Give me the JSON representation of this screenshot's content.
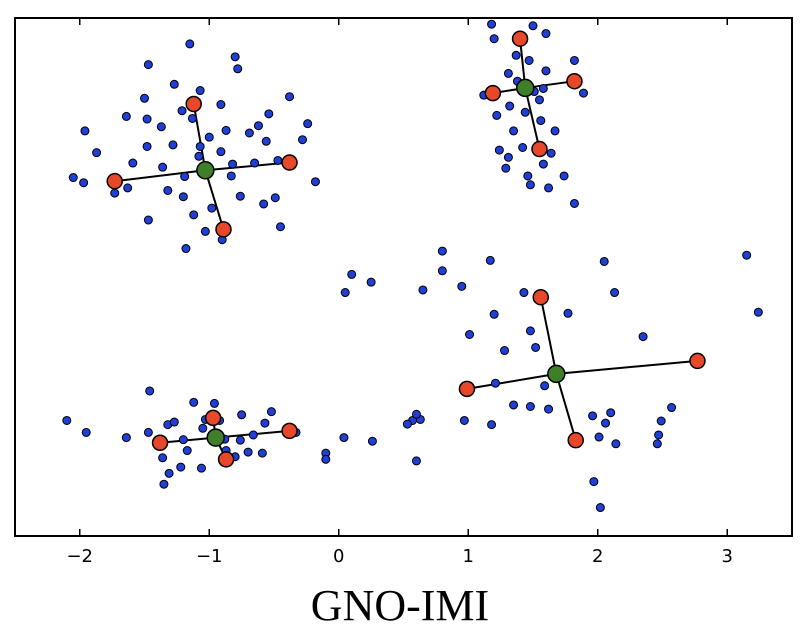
{
  "chart_data": {
    "type": "scatter",
    "title": "GNO-IMI",
    "xlabel": "",
    "ylabel": "",
    "xlim": [
      -2.5,
      3.5
    ],
    "ylim": [
      0,
      10
    ],
    "x_ticks": [
      -2,
      -1,
      0,
      1,
      2,
      3
    ],
    "x_tick_labels": [
      "−2",
      "−1",
      "0",
      "1",
      "2",
      "3"
    ],
    "y_ticks_shown": false,
    "grid": false,
    "legend": "none",
    "colors": {
      "points": "#1f3fd6",
      "centroids": "#3f7f2a",
      "subcentroids": "#e8482a"
    },
    "series": [
      {
        "role": "points",
        "points": [
          [
            -1.15,
            9.5
          ],
          [
            -0.8,
            9.25
          ],
          [
            -0.78,
            9.02
          ],
          [
            -1.47,
            9.1
          ],
          [
            -1.27,
            8.72
          ],
          [
            -1.5,
            8.45
          ],
          [
            -1.07,
            8.6
          ],
          [
            -0.38,
            8.48
          ],
          [
            -0.91,
            8.33
          ],
          [
            -1.64,
            8.1
          ],
          [
            -1.48,
            8.05
          ],
          [
            -1.21,
            8.21
          ],
          [
            -1.13,
            8.06
          ],
          [
            -1.37,
            7.9
          ],
          [
            -0.54,
            8.15
          ],
          [
            -0.24,
            7.96
          ],
          [
            -1.96,
            7.82
          ],
          [
            -1.0,
            7.7
          ],
          [
            -0.87,
            7.83
          ],
          [
            -0.56,
            7.62
          ],
          [
            -0.69,
            7.78
          ],
          [
            -1.28,
            7.55
          ],
          [
            -1.48,
            7.52
          ],
          [
            -0.91,
            7.42
          ],
          [
            -1.08,
            7.33
          ],
          [
            -0.28,
            7.65
          ],
          [
            -1.59,
            7.2
          ],
          [
            -1.36,
            7.12
          ],
          [
            -0.65,
            7.2
          ],
          [
            -0.82,
            7.18
          ],
          [
            -0.47,
            7.25
          ],
          [
            -1.97,
            6.82
          ],
          [
            -1.19,
            6.94
          ],
          [
            -1.32,
            6.67
          ],
          [
            -0.49,
            6.53
          ],
          [
            -0.76,
            6.56
          ],
          [
            -0.58,
            6.41
          ],
          [
            -1.63,
            6.72
          ],
          [
            -1.73,
            6.62
          ],
          [
            -1.2,
            6.55
          ],
          [
            -0.98,
            6.33
          ],
          [
            -1.47,
            6.1
          ],
          [
            -1.12,
            6.2
          ],
          [
            -1.03,
            5.88
          ],
          [
            -1.18,
            5.55
          ],
          [
            -0.9,
            5.72
          ],
          [
            -0.45,
            5.97
          ],
          [
            -2.05,
            6.92
          ],
          [
            -1.87,
            7.4
          ],
          [
            -0.18,
            6.84
          ],
          [
            -0.83,
            6.95
          ],
          [
            -1.07,
            7.52
          ],
          [
            -0.62,
            7.92
          ],
          [
            1.18,
            9.88
          ],
          [
            1.5,
            9.85
          ],
          [
            1.6,
            9.7
          ],
          [
            1.2,
            9.6
          ],
          [
            1.37,
            9.28
          ],
          [
            1.47,
            9.18
          ],
          [
            1.82,
            9.18
          ],
          [
            1.6,
            8.98
          ],
          [
            1.38,
            8.78
          ],
          [
            1.58,
            8.64
          ],
          [
            1.89,
            8.55
          ],
          [
            1.12,
            8.51
          ],
          [
            1.55,
            8.42
          ],
          [
            1.32,
            8.3
          ],
          [
            1.44,
            8.18
          ],
          [
            1.22,
            8.12
          ],
          [
            1.56,
            8.02
          ],
          [
            1.35,
            7.82
          ],
          [
            1.67,
            7.82
          ],
          [
            1.24,
            7.45
          ],
          [
            1.31,
            7.31
          ],
          [
            1.42,
            7.5
          ],
          [
            1.64,
            7.39
          ],
          [
            1.29,
            7.1
          ],
          [
            1.58,
            7.18
          ],
          [
            1.46,
            6.95
          ],
          [
            1.62,
            6.72
          ],
          [
            1.82,
            6.42
          ],
          [
            1.48,
            6.78
          ],
          [
            1.74,
            6.95
          ],
          [
            1.31,
            8.93
          ],
          [
            1.51,
            8.58
          ],
          [
            0.8,
            5.5
          ],
          [
            0.8,
            5.12
          ],
          [
            1.17,
            5.32
          ],
          [
            0.65,
            4.75
          ],
          [
            0.95,
            4.82
          ],
          [
            1.43,
            4.7
          ],
          [
            1.2,
            4.28
          ],
          [
            1.01,
            3.89
          ],
          [
            1.48,
            3.96
          ],
          [
            1.77,
            4.3
          ],
          [
            1.52,
            3.64
          ],
          [
            1.28,
            3.58
          ],
          [
            2.05,
            5.3
          ],
          [
            2.13,
            4.7
          ],
          [
            2.35,
            3.85
          ],
          [
            3.15,
            5.42
          ],
          [
            3.24,
            4.32
          ],
          [
            1.21,
            2.95
          ],
          [
            1.35,
            2.53
          ],
          [
            1.48,
            2.5
          ],
          [
            1.62,
            2.45
          ],
          [
            1.59,
            2.9
          ],
          [
            1.96,
            2.32
          ],
          [
            2.1,
            2.38
          ],
          [
            2.06,
            2.18
          ],
          [
            2.01,
            1.91
          ],
          [
            2.14,
            1.78
          ],
          [
            2.57,
            2.48
          ],
          [
            2.49,
            2.22
          ],
          [
            2.47,
            1.95
          ],
          [
            2.46,
            1.78
          ],
          [
            0.97,
            2.23
          ],
          [
            1.18,
            2.15
          ],
          [
            0.63,
            2.25
          ],
          [
            0.57,
            2.23
          ],
          [
            0.6,
            1.45
          ],
          [
            1.97,
            1.05
          ],
          [
            2.02,
            0.55
          ],
          [
            0.25,
            4.9
          ],
          [
            0.05,
            4.7
          ],
          [
            0.1,
            5.05
          ],
          [
            -1.46,
            2.8
          ],
          [
            -2.1,
            2.23
          ],
          [
            -1.95,
            2.0
          ],
          [
            -1.64,
            1.9
          ],
          [
            -1.32,
            2.15
          ],
          [
            -1.27,
            2.2
          ],
          [
            -1.12,
            2.58
          ],
          [
            -0.96,
            2.56
          ],
          [
            -0.75,
            2.34
          ],
          [
            -0.52,
            2.4
          ],
          [
            -0.57,
            2.18
          ],
          [
            -1.17,
            1.65
          ],
          [
            -1.36,
            1.51
          ],
          [
            -1.22,
            1.33
          ],
          [
            -1.31,
            1.21
          ],
          [
            -1.35,
            1.0
          ],
          [
            -1.06,
            1.31
          ],
          [
            -0.87,
            1.65
          ],
          [
            -1.05,
            2.08
          ],
          [
            -1.47,
            2.0
          ],
          [
            -0.59,
            1.6
          ],
          [
            -0.8,
            1.53
          ],
          [
            -0.33,
            2.0
          ],
          [
            -0.1,
            1.6
          ],
          [
            0.26,
            1.83
          ],
          [
            0.6,
            2.35
          ],
          [
            -0.88,
            1.87
          ],
          [
            -0.76,
            1.85
          ],
          [
            -0.66,
            1.95
          ],
          [
            -0.92,
            2.23
          ],
          [
            -1.03,
            2.25
          ],
          [
            -1.2,
            1.86
          ],
          [
            -0.7,
            1.62
          ],
          [
            -0.1,
            1.48
          ],
          [
            0.04,
            1.9
          ],
          [
            0.53,
            2.16
          ]
        ]
      },
      {
        "role": "centroids",
        "points": [
          [
            -1.03,
            7.06
          ],
          [
            1.44,
            8.65
          ],
          [
            -0.95,
            1.9
          ],
          [
            1.68,
            3.13
          ]
        ]
      },
      {
        "role": "subcentroids",
        "groups": [
          [
            [
              -1.73,
              6.85
            ],
            [
              -0.38,
              7.21
            ],
            [
              -1.12,
              8.34
            ],
            [
              -0.89,
              5.92
            ]
          ],
          [
            [
              1.19,
              8.55
            ],
            [
              1.82,
              8.78
            ],
            [
              1.4,
              9.6
            ],
            [
              1.55,
              7.47
            ]
          ],
          [
            [
              -1.38,
              1.8
            ],
            [
              -0.38,
              2.03
            ],
            [
              -0.97,
              2.28
            ],
            [
              -0.87,
              1.48
            ]
          ],
          [
            [
              0.99,
              2.84
            ],
            [
              2.77,
              3.38
            ],
            [
              1.56,
              4.61
            ],
            [
              1.83,
              1.85
            ]
          ]
        ]
      }
    ]
  }
}
